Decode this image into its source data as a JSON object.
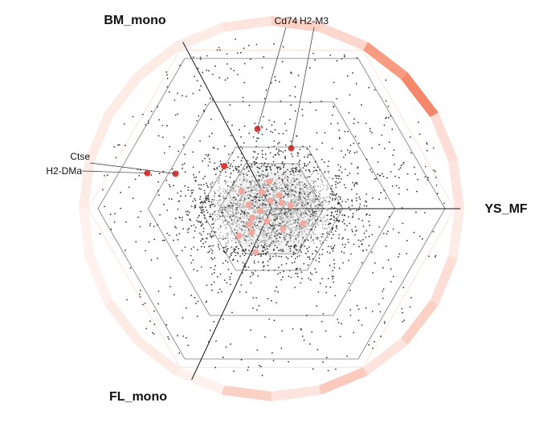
{
  "chart_data": {
    "type": "scatter",
    "subtype": "hexagonal radial plot",
    "axes": [
      {
        "name": "BM_mono",
        "angle_deg": 118
      },
      {
        "name": "YS_MF",
        "angle_deg": 0
      },
      {
        "name": "FL_mono",
        "angle_deg": 245
      }
    ],
    "grid": true,
    "grid_levels": [
      0.37,
      0.64,
      0.9
    ],
    "background_points": {
      "count": 3200,
      "color": "#333333",
      "note_color": "#aaaaaa"
    },
    "highlight_color": "#dd3b3b",
    "highlight_inner_color": "#f2a89e",
    "highlighted_genes": [
      {
        "label": "Cd74",
        "r": 0.42,
        "theta": 100
      },
      {
        "label": "H2-M3",
        "r": 0.33,
        "theta": 72
      },
      {
        "label": "Ctse",
        "r": 0.53,
        "theta": 160
      },
      {
        "label": "H2-DMa",
        "r": 0.67,
        "theta": 164
      }
    ],
    "other_highlights": [
      {
        "r": 0.33,
        "theta": 138
      }
    ],
    "inner_highlights": [
      {
        "r": 0.18,
        "theta": 150
      },
      {
        "r": 0.12,
        "theta": 170
      },
      {
        "r": 0.1,
        "theta": 120
      },
      {
        "r": 0.14,
        "theta": 95
      },
      {
        "r": 0.08,
        "theta": 60
      },
      {
        "r": 0.06,
        "theta": 30
      },
      {
        "r": 0.1,
        "theta": 10
      },
      {
        "r": 0.06,
        "theta": 190
      },
      {
        "r": 0.11,
        "theta": 205
      },
      {
        "r": 0.14,
        "theta": 215
      },
      {
        "r": 0.07,
        "theta": 250
      },
      {
        "r": 0.12,
        "theta": 300
      },
      {
        "r": 0.18,
        "theta": 335
      },
      {
        "r": 0.16,
        "theta": 230
      },
      {
        "r": 0.22,
        "theta": 220
      },
      {
        "r": 0.24,
        "theta": 250
      },
      {
        "r": 0.04,
        "theta": 100
      }
    ],
    "outer_ring": {
      "segments": 24,
      "intensity": [
        0.2,
        0.25,
        0.9,
        0.75,
        0.3,
        0.35,
        0.2,
        0.15,
        0.15,
        0.15,
        0.15,
        0.15,
        0.1,
        0.1,
        0.15,
        0.15,
        0.1,
        0.35,
        0.2,
        0.4,
        0.2,
        0.35,
        0.25,
        0.15
      ],
      "color": "#f47a5a"
    }
  }
}
